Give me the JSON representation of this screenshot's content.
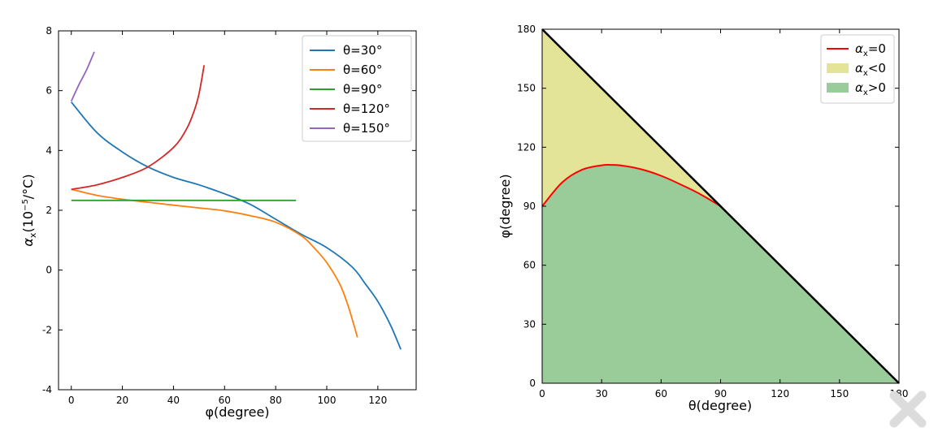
{
  "chart_data": [
    {
      "type": "line",
      "xlabel": "φ(degree)",
      "ylabel_parts": [
        "α",
        "x",
        "(10",
        "−5",
        "/°C)"
      ],
      "xlim": [
        -5,
        135
      ],
      "ylim": [
        -4,
        8
      ],
      "xticks": [
        0,
        20,
        40,
        60,
        80,
        100,
        120
      ],
      "xtick_labels": [
        "0",
        "20",
        "40",
        "60",
        "80",
        "100",
        "120"
      ],
      "yticks": [
        -4,
        -2,
        0,
        2,
        4,
        6,
        8
      ],
      "ytick_labels": [
        "-4",
        "-2",
        "0",
        "2",
        "4",
        "6",
        "8"
      ],
      "legend_position": "top-right",
      "series": [
        {
          "name": "θ=30°",
          "color": "#1f77b4",
          "x": [
            0,
            10,
            20,
            30,
            40,
            50,
            60,
            70,
            80,
            90,
            100,
            110,
            115,
            120,
            125,
            129
          ],
          "y": [
            5.62,
            4.6,
            3.95,
            3.45,
            3.1,
            2.85,
            2.55,
            2.2,
            1.7,
            1.2,
            0.75,
            0.1,
            -0.45,
            -1.05,
            -1.85,
            -2.65
          ]
        },
        {
          "name": "θ=60°",
          "color": "#ff7f0e",
          "x": [
            0,
            10,
            20,
            30,
            40,
            50,
            60,
            70,
            80,
            90,
            95,
            100,
            105,
            108,
            110,
            112
          ],
          "y": [
            2.7,
            2.5,
            2.37,
            2.27,
            2.17,
            2.08,
            1.98,
            1.82,
            1.6,
            1.15,
            0.75,
            0.25,
            -0.45,
            -1.1,
            -1.65,
            -2.25
          ]
        },
        {
          "name": "θ=90°",
          "color": "#2ca02c",
          "x": [
            0,
            88
          ],
          "y": [
            2.33,
            2.33
          ]
        },
        {
          "name": "θ=120°",
          "color": "#d62728",
          "x": [
            0,
            10,
            20,
            30,
            40,
            45,
            48,
            50,
            52
          ],
          "y": [
            2.7,
            2.85,
            3.1,
            3.45,
            4.1,
            4.7,
            5.3,
            5.9,
            6.85
          ]
        },
        {
          "name": "θ=150°",
          "color": "#9467bd",
          "x": [
            0,
            3,
            6,
            9
          ],
          "y": [
            5.65,
            6.2,
            6.7,
            7.3
          ]
        }
      ]
    },
    {
      "type": "area",
      "xlabel": "θ(degree)",
      "ylabel": "φ(degree)",
      "xlim": [
        0,
        180
      ],
      "ylim": [
        0,
        180
      ],
      "xticks": [
        0,
        30,
        60,
        90,
        120,
        150,
        180
      ],
      "xtick_labels": [
        "0",
        "30",
        "60",
        "90",
        "120",
        "150",
        "180"
      ],
      "yticks": [
        0,
        30,
        60,
        90,
        120,
        150,
        180
      ],
      "ytick_labels": [
        "0",
        "30",
        "60",
        "90",
        "120",
        "150",
        "180"
      ],
      "legend_position": "top-right",
      "boundary_line": {
        "x": [
          0,
          180
        ],
        "y": [
          180,
          0
        ],
        "color": "#000000"
      },
      "curve": {
        "x": [
          0,
          10,
          20,
          30,
          35,
          40,
          50,
          60,
          70,
          80,
          90
        ],
        "y": [
          90,
          102,
          108.5,
          110.8,
          111,
          110.7,
          108.8,
          105.5,
          101,
          96,
          90
        ]
      },
      "legend": [
        {
          "label_parts": [
            "α",
            "x",
            "=0"
          ],
          "kind": "line",
          "color": "#ff0000"
        },
        {
          "label_parts": [
            "α",
            "x",
            "<0"
          ],
          "kind": "patch",
          "color": "#e3e497"
        },
        {
          "label_parts": [
            "α",
            "x",
            ">0"
          ],
          "kind": "patch",
          "color": "#99cc99"
        }
      ]
    }
  ]
}
